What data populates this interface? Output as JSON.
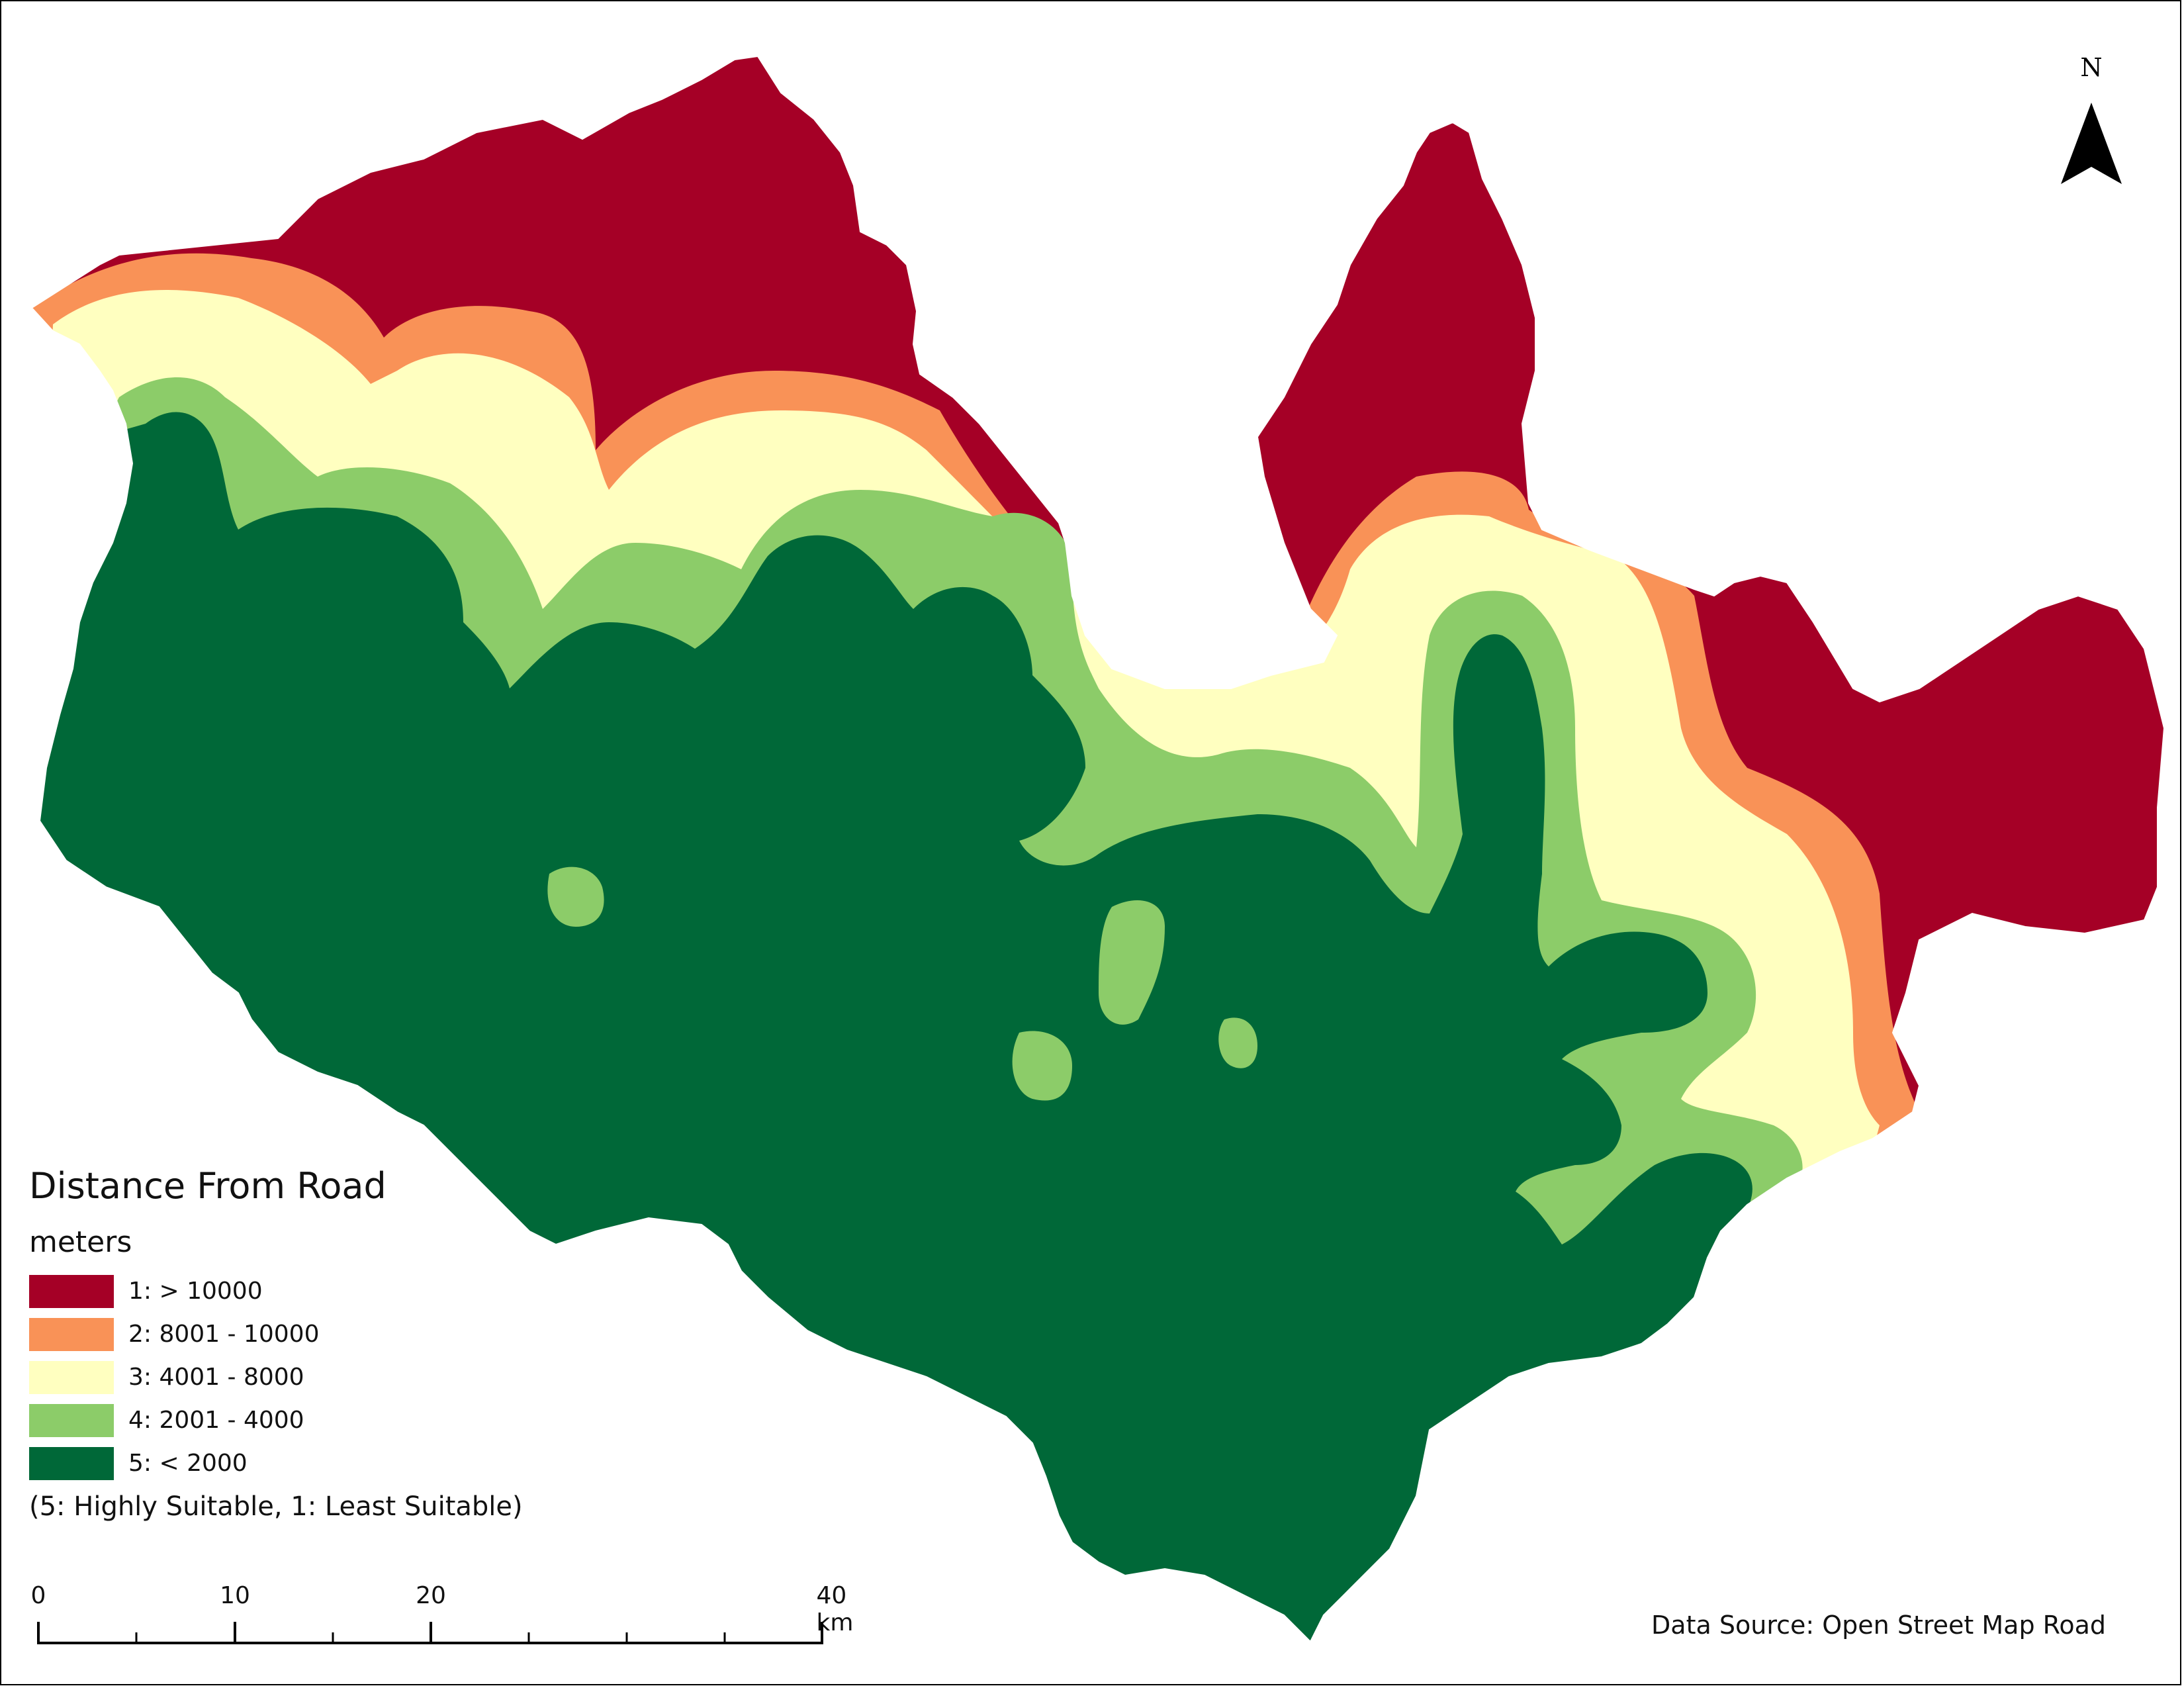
{
  "legend": {
    "title": "Distance From Road",
    "subtitle": "meters",
    "items": [
      {
        "label": "1: > 10000",
        "color": "#a50026"
      },
      {
        "label": "2: 8001 - 10000",
        "color": "#f99257"
      },
      {
        "label": "3: 4001 - 8000",
        "color": "#ffffc0"
      },
      {
        "label": "4: 2001 - 4000",
        "color": "#8ccc69"
      },
      {
        "label": "5: < 2000",
        "color": "#006838"
      }
    ],
    "note": "(5: Highly Suitable, 1: Least Suitable)"
  },
  "north_arrow": {
    "letter": "N"
  },
  "scale_bar": {
    "labels": [
      "0",
      "10",
      "20",
      "40 km"
    ]
  },
  "data_source": "Data Source: Open Street Map Road"
}
